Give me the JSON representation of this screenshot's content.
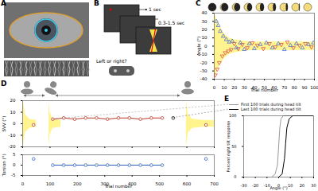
{
  "panels": {
    "A": {
      "label": "A"
    },
    "B": {
      "label": "B",
      "stimulus_duration": "1 sec",
      "interval": "0.3-1.5 sec",
      "question": "Left or right?"
    }
  },
  "chart_data": [
    {
      "panel_label": "C",
      "type": "scatter",
      "x_label": "Trial number",
      "y_label": "Angle (°)",
      "xlim": [
        0,
        100
      ],
      "xticks": [
        0,
        10,
        20,
        30,
        40,
        50,
        60,
        70,
        80,
        90,
        100
      ],
      "ylim": [
        -40,
        40
      ],
      "yticks": [
        -40,
        -30,
        -20,
        -10,
        0,
        10,
        20,
        30,
        40
      ],
      "band": {
        "color": "#fff27a",
        "x": [
          0,
          5,
          10,
          15,
          20,
          30,
          40,
          100
        ],
        "upper": [
          40,
          25,
          15,
          10,
          8,
          6,
          5,
          5
        ],
        "lower": [
          -40,
          -25,
          -15,
          -10,
          -8,
          -6,
          -5,
          -5
        ]
      },
      "series": [
        {
          "color": "#d9534f",
          "marker": "triangle-down",
          "line_style": "none",
          "x": [
            1,
            3,
            5,
            8,
            11,
            14,
            17,
            20,
            24,
            28,
            33,
            38,
            43,
            49,
            55,
            61,
            67,
            73,
            79,
            85,
            91,
            97
          ],
          "values": [
            -35,
            -28,
            -20,
            -12,
            -8,
            -6,
            -4,
            3,
            -3,
            2,
            -2,
            4,
            1,
            -3,
            3,
            -1,
            2,
            5,
            -2,
            1,
            3,
            -1
          ]
        },
        {
          "color": "#4a6fd6",
          "marker": "triangle",
          "line_style": "none",
          "x": [
            2,
            4,
            6,
            9,
            12,
            15,
            18,
            22,
            26,
            30,
            35,
            40,
            46,
            52,
            58,
            64,
            70,
            76,
            82,
            88,
            94,
            99
          ],
          "values": [
            30,
            25,
            18,
            12,
            8,
            5,
            6,
            -2,
            4,
            -4,
            3,
            -3,
            2,
            4,
            -2,
            3,
            -4,
            1,
            3,
            -2,
            2,
            4
          ]
        }
      ]
    },
    {
      "panel_label": "D",
      "type": "line",
      "y_label": "SVV (°)",
      "tick_labels": "y",
      "xlim": [
        0,
        700
      ],
      "xticks": [
        0,
        100,
        200,
        300,
        400,
        500,
        600,
        700
      ],
      "ylim": [
        -20,
        20
      ],
      "yticks": [
        -20,
        -10,
        0,
        10,
        20
      ],
      "band": {
        "color": "#fff27a",
        "x": [
          2,
          10,
          25,
          50,
          70,
          96,
          100,
          110,
          140,
          300,
          598,
          605,
          620,
          660,
          700
        ],
        "upper": [
          20,
          8,
          4,
          3,
          null,
          20,
          10,
          4,
          3,
          null,
          20,
          8,
          4,
          3,
          3
        ],
        "lower": [
          -20,
          -8,
          -4,
          -3,
          null,
          -20,
          -10,
          -4,
          -3,
          null,
          -20,
          -8,
          -4,
          -3,
          -3
        ]
      },
      "series": [
        {
          "color": "#c0392b",
          "marker": "circle",
          "line_style": "solid",
          "x": [
            40,
            75,
            110,
            150,
            190,
            230,
            270,
            310,
            350,
            390,
            430,
            470,
            510,
            600,
            670
          ],
          "values": [
            -1,
            null,
            4,
            5,
            4,
            5,
            5,
            4,
            5,
            5,
            4,
            5,
            5,
            null,
            -1
          ]
        },
        {
          "color": "#000000",
          "marker": "circle",
          "line_style": "none",
          "x": [
            550
          ],
          "values": [
            5
          ]
        }
      ]
    },
    {
      "type": "line",
      "x_label": "Trial number",
      "y_label": "Torsion (°)",
      "xlim": [
        0,
        700
      ],
      "xticks": [
        0,
        100,
        200,
        300,
        400,
        500,
        600,
        700
      ],
      "ylim": [
        -5,
        5
      ],
      "yticks": [
        -5,
        0,
        5
      ],
      "series": [
        {
          "color": "#3060c0",
          "marker": "circle",
          "line_style": "solid",
          "x": [
            40,
            75,
            110,
            150,
            190,
            230,
            270,
            310,
            350,
            390,
            430,
            470,
            510,
            600,
            670
          ],
          "values": [
            3,
            null,
            0,
            0,
            0,
            0,
            0,
            0,
            0,
            0,
            0,
            0,
            0,
            null,
            3
          ]
        }
      ]
    },
    {
      "panel_label": "E",
      "type": "line",
      "x_label": "Angle (°)",
      "y_label": "Percent right tilt response",
      "legend": "top",
      "xlim": [
        -30,
        30
      ],
      "xticks": [
        -30,
        -20,
        -10,
        0,
        10,
        20,
        30
      ],
      "ylim": [
        0,
        100
      ],
      "yticks": [
        0,
        50,
        100
      ],
      "series": [
        {
          "name": "First 100 trials during head tilt",
          "color": "#999999",
          "marker": "none",
          "line_style": "solid",
          "x": [
            -30,
            -6,
            -3,
            -1,
            0,
            1,
            2,
            4,
            30
          ],
          "values": [
            0,
            0,
            5,
            20,
            50,
            80,
            95,
            100,
            100
          ]
        },
        {
          "name": "Last 100 trials during head tilt",
          "color": "#000000",
          "marker": "none",
          "line_style": "solid",
          "x": [
            -30,
            0,
            3,
            5,
            6,
            7,
            9,
            12,
            30
          ],
          "values": [
            0,
            0,
            5,
            30,
            55,
            80,
            95,
            100,
            100
          ]
        }
      ]
    }
  ]
}
